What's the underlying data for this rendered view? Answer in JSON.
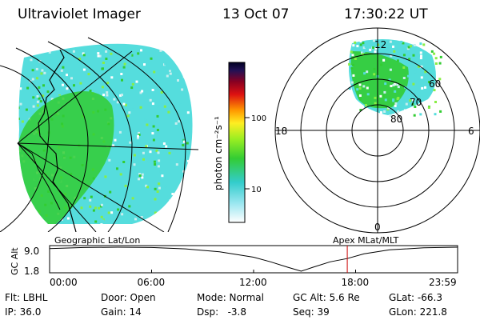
{
  "header": {
    "instrument": "Ultraviolet Imager",
    "date": "13 Oct 07",
    "time": "17:30:22 UT"
  },
  "colorbar": {
    "unit_label": "photon cm⁻²s⁻¹",
    "ticks": [
      "100",
      "10"
    ],
    "scale": "log"
  },
  "polar": {
    "clock_labels": [
      "12",
      "18",
      "6",
      "0"
    ],
    "lat_labels": [
      "60",
      "70",
      "80"
    ]
  },
  "panel_labels": {
    "left": "Geographic Lat/Lon",
    "right": "Apex MLat/MLT"
  },
  "chart_data": {
    "type": "line",
    "title": "",
    "ylabel": "GC Alt",
    "ytick_labels": [
      "9.0",
      "1.8"
    ],
    "ylim": [
      1.8,
      9.0
    ],
    "xtick_labels": [
      "00:00",
      "06:00",
      "12:00",
      "18:00",
      "23:59"
    ],
    "xlim_hours": [
      0,
      24
    ],
    "series": [
      {
        "x_hours": [
          0,
          2,
          4,
          6,
          8,
          10,
          12,
          13,
          14,
          14.8,
          15.5,
          16.5,
          17.5,
          18.5,
          20,
          22,
          23.98
        ],
        "y": [
          8.6,
          8.9,
          9.0,
          8.9,
          8.5,
          7.6,
          6.0,
          4.6,
          3.0,
          1.8,
          3.0,
          4.6,
          5.6,
          7.0,
          8.2,
          8.8,
          9.0
        ]
      }
    ],
    "current_time_marker_hours": 17.51,
    "marker_color": "#cc0000"
  },
  "footer": {
    "filter": "Flt: LBHL",
    "door": "Door: Open",
    "mode": "Mode: Normal",
    "gc_alt": "GC Alt: 5.6 Re",
    "glat": "GLat: -66.3",
    "ip": "IP: 36.0",
    "gain": "Gain: 14",
    "dsp": "Dsp:   -3.8",
    "seq": "Seq: 39",
    "glon": "GLon: 221.8"
  },
  "colors": {
    "green": "#33cc33",
    "cyan": "#55dddd",
    "palecyan": "#c8eeee",
    "lightgreen": "#88ee44"
  }
}
